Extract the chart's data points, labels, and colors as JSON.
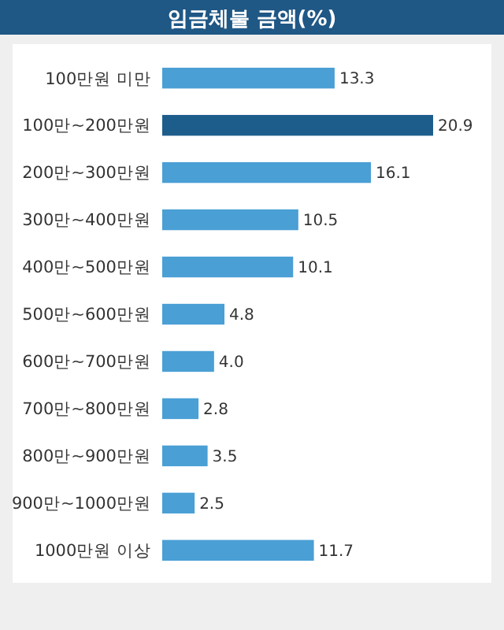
{
  "chart_data": {
    "type": "bar",
    "orientation": "horizontal",
    "title": "임금체불 금액(%)",
    "categories": [
      "100만원 미만",
      "100만~200만원",
      "200만~300만원",
      "300만~400만원",
      "400만~500만원",
      "500만~600만원",
      "600만~700만원",
      "700만~800만원",
      "800만~900만원",
      "900만~1000만원",
      "1000만원 이상"
    ],
    "values": [
      13.3,
      20.9,
      16.1,
      10.5,
      10.1,
      4.8,
      4.0,
      2.8,
      3.5,
      2.5,
      11.7
    ],
    "colors": [
      "#4a9fd5",
      "#1d5d8c",
      "#4a9fd5",
      "#4a9fd5",
      "#4a9fd5",
      "#4a9fd5",
      "#4a9fd5",
      "#4a9fd5",
      "#4a9fd5",
      "#4a9fd5",
      "#4a9fd5"
    ],
    "value_labels": [
      "13.3",
      "20.9",
      "16.1",
      "10.5",
      "10.1",
      "4.8",
      "4.0",
      "2.8",
      "3.5",
      "2.5",
      "11.7"
    ]
  }
}
